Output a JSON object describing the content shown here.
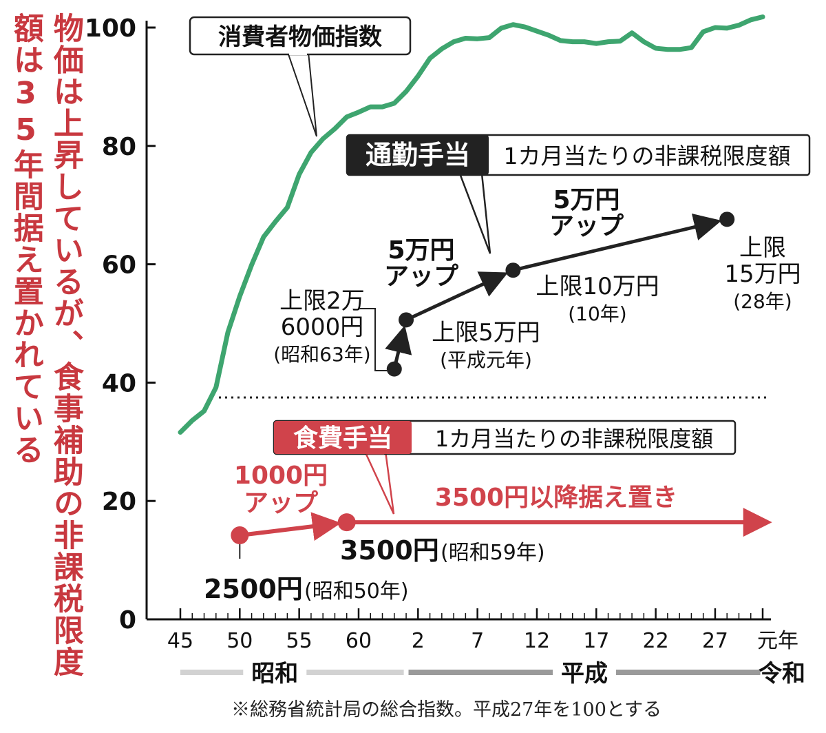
{
  "headline": {
    "line1": "物価は上昇しているが、食事補助の非課税限度",
    "line2": "額は35年間据え置かれている"
  },
  "source_note": "※総務省統計局の総合指数。平成27年を100とする",
  "colors": {
    "cpi_line": "#3ea56f",
    "commute": "#222222",
    "meal": "#d0434b",
    "headline": "#c8383f",
    "era_bar_showa": "#d2d2d2",
    "era_bar_heisei": "#9a9a9a"
  },
  "chart_data": {
    "type": "line",
    "ylim": [
      0,
      102
    ],
    "yticks": [
      0,
      20,
      40,
      60,
      80,
      100
    ],
    "ytick_labels": [
      "0",
      "20",
      "40",
      "60",
      "80",
      "100"
    ],
    "xlim": [
      1969,
      2020
    ],
    "xticks": [
      1970,
      1975,
      1980,
      1985,
      1990,
      1995,
      2000,
      2005,
      2010,
      2015,
      2019
    ],
    "xtick_labels": [
      "45",
      "50",
      "55",
      "60",
      "2",
      "7",
      "12",
      "17",
      "22",
      "27",
      "元年"
    ],
    "eras": [
      {
        "label": "昭和",
        "from": 1970,
        "to": 1988.8
      },
      {
        "label": "平成",
        "from": 1989.2,
        "to": 2018.8
      },
      {
        "label": "令和",
        "from": 2019,
        "to": 2020
      }
    ],
    "cpi_label": "消費者物価指数",
    "series": [
      {
        "name": "消費者物価指数",
        "x": [
          1970,
          1971,
          1972,
          1973,
          1974,
          1975,
          1976,
          1977,
          1978,
          1979,
          1980,
          1981,
          1982,
          1983,
          1984,
          1985,
          1986,
          1987,
          1988,
          1989,
          1990,
          1991,
          1992,
          1993,
          1994,
          1995,
          1996,
          1997,
          1998,
          1999,
          2000,
          2001,
          2002,
          2003,
          2004,
          2005,
          2006,
          2007,
          2008,
          2009,
          2010,
          2011,
          2012,
          2013,
          2014,
          2015,
          2016,
          2017,
          2018,
          2019
        ],
        "y": [
          31.6,
          33.6,
          35.2,
          39.2,
          48.5,
          54.6,
          59.9,
          64.6,
          67.2,
          69.6,
          75.2,
          78.9,
          81.2,
          82.9,
          84.9,
          85.7,
          86.6,
          86.6,
          87.2,
          89.2,
          91.8,
          94.8,
          96.4,
          97.6,
          98.2,
          98.1,
          98.3,
          99.9,
          100.5,
          100.1,
          99.4,
          98.7,
          97.8,
          97.6,
          97.6,
          97.3,
          97.6,
          97.7,
          99.1,
          97.6,
          96.5,
          96.3,
          96.3,
          96.6,
          99.3,
          100.0,
          99.9,
          100.4,
          101.3,
          101.8
        ]
      },
      {
        "name": "通勤手当",
        "x": [
          1988,
          1989,
          1998,
          2016
        ],
        "y": [
          42.3,
          50.6,
          59.0,
          67.6
        ]
      },
      {
        "name": "食費手当",
        "x": [
          1975,
          1984,
          2019.1
        ],
        "y": [
          14.2,
          16.4,
          16.4
        ]
      }
    ],
    "commute": {
      "box_title": "通勤手当",
      "box_sub": "1カ月当たりの非課税限度額",
      "points": [
        {
          "label_lines": [
            "上限2万",
            "6000円",
            "(昭和63年)"
          ]
        },
        {
          "label_lines": [
            "上限5万円",
            "(平成元年)"
          ]
        },
        {
          "label_lines": [
            "上限10万円",
            "(10年)"
          ]
        },
        {
          "label_lines": [
            "上限",
            "15万円",
            "(28年)"
          ]
        }
      ],
      "annotations": [
        {
          "lines": [
            "5万円",
            "アップ"
          ]
        },
        {
          "lines": [
            "5万円",
            "アップ"
          ]
        }
      ]
    },
    "meal": {
      "box_title": "食費手当",
      "box_sub": "1カ月当たりの非課税限度額",
      "points": [
        {
          "amount": "2500円",
          "year": "(昭和50年)"
        },
        {
          "amount": "3500円",
          "year": "(昭和59年)"
        }
      ],
      "up_label": [
        "1000円",
        "アップ"
      ],
      "flat_label": "3500円以降据え置き"
    }
  }
}
